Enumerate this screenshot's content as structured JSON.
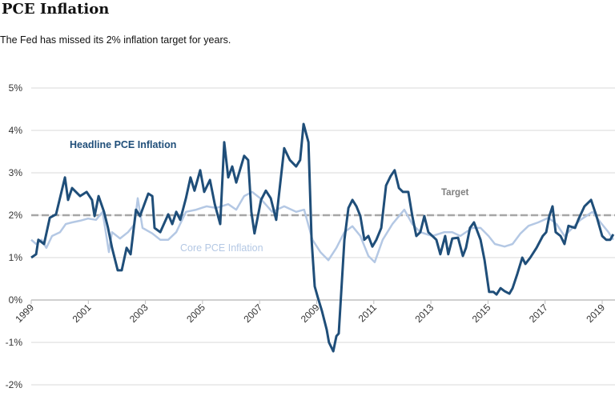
{
  "title": "PCE Inflation",
  "subtitle": "The Fed has missed its 2% inflation target for years.",
  "chart_data": {
    "type": "line",
    "title": "PCE Inflation",
    "xlabel": "",
    "ylabel": "",
    "xlim": [
      1999,
      2019.4
    ],
    "ylim": [
      -2,
      5
    ],
    "x_ticks": [
      "1999",
      "2001",
      "2003",
      "2005",
      "2007",
      "2009",
      "2011",
      "2013",
      "2015",
      "2017",
      "2019"
    ],
    "y_ticks": [
      "5%",
      "4%",
      "3%",
      "2%",
      "1%",
      "0%",
      "-1%",
      "-2%"
    ],
    "grid": true,
    "colors": {
      "headline": "#1f4e79",
      "core": "#b4c8e4",
      "target": "#a6a6a6"
    },
    "target": {
      "label": "Target",
      "value": 2
    },
    "series": [
      {
        "name": "Headline PCE Inflation",
        "points": [
          [
            1999.0,
            1.0
          ],
          [
            1999.17,
            1.08
          ],
          [
            1999.25,
            1.42
          ],
          [
            1999.45,
            1.32
          ],
          [
            1999.65,
            1.94
          ],
          [
            1999.87,
            2.02
          ],
          [
            2000.18,
            2.89
          ],
          [
            2000.29,
            2.36
          ],
          [
            2000.43,
            2.64
          ],
          [
            2000.71,
            2.45
          ],
          [
            2000.94,
            2.55
          ],
          [
            2001.13,
            2.36
          ],
          [
            2001.22,
            1.98
          ],
          [
            2001.36,
            2.45
          ],
          [
            2001.55,
            2.08
          ],
          [
            2001.69,
            1.7
          ],
          [
            2001.83,
            1.23
          ],
          [
            2002.03,
            0.7
          ],
          [
            2002.17,
            0.7
          ],
          [
            2002.34,
            1.23
          ],
          [
            2002.48,
            1.08
          ],
          [
            2002.67,
            2.13
          ],
          [
            2002.81,
            1.98
          ],
          [
            2003.1,
            2.51
          ],
          [
            2003.24,
            2.45
          ],
          [
            2003.32,
            1.7
          ],
          [
            2003.52,
            1.6
          ],
          [
            2003.8,
            2.02
          ],
          [
            2003.94,
            1.79
          ],
          [
            2004.08,
            2.08
          ],
          [
            2004.22,
            1.89
          ],
          [
            2004.42,
            2.4
          ],
          [
            2004.58,
            2.89
          ],
          [
            2004.72,
            2.58
          ],
          [
            2004.92,
            3.06
          ],
          [
            2005.06,
            2.55
          ],
          [
            2005.26,
            2.83
          ],
          [
            2005.43,
            2.26
          ],
          [
            2005.62,
            1.79
          ],
          [
            2005.76,
            3.72
          ],
          [
            2005.9,
            2.89
          ],
          [
            2006.04,
            3.15
          ],
          [
            2006.18,
            2.77
          ],
          [
            2006.46,
            3.4
          ],
          [
            2006.6,
            3.3
          ],
          [
            2006.71,
            2.08
          ],
          [
            2006.82,
            1.57
          ],
          [
            2006.94,
            1.98
          ],
          [
            2007.05,
            2.36
          ],
          [
            2007.22,
            2.58
          ],
          [
            2007.39,
            2.4
          ],
          [
            2007.58,
            1.89
          ],
          [
            2007.72,
            2.74
          ],
          [
            2007.86,
            3.58
          ],
          [
            2008.06,
            3.3
          ],
          [
            2008.28,
            3.15
          ],
          [
            2008.42,
            3.3
          ],
          [
            2008.54,
            4.15
          ],
          [
            2008.71,
            3.72
          ],
          [
            2008.82,
            1.42
          ],
          [
            2008.93,
            0.32
          ],
          [
            2009.04,
            0.06
          ],
          [
            2009.18,
            -0.25
          ],
          [
            2009.35,
            -0.7
          ],
          [
            2009.43,
            -1.0
          ],
          [
            2009.58,
            -1.21
          ],
          [
            2009.69,
            -0.85
          ],
          [
            2009.77,
            -0.79
          ],
          [
            2009.97,
            1.42
          ],
          [
            2010.11,
            2.17
          ],
          [
            2010.25,
            2.36
          ],
          [
            2010.39,
            2.21
          ],
          [
            2010.53,
            1.98
          ],
          [
            2010.67,
            1.42
          ],
          [
            2010.81,
            1.51
          ],
          [
            2010.95,
            1.26
          ],
          [
            2011.09,
            1.42
          ],
          [
            2011.26,
            1.7
          ],
          [
            2011.43,
            2.7
          ],
          [
            2011.59,
            2.92
          ],
          [
            2011.73,
            3.06
          ],
          [
            2011.88,
            2.64
          ],
          [
            2012.02,
            2.55
          ],
          [
            2012.21,
            2.55
          ],
          [
            2012.35,
            1.98
          ],
          [
            2012.49,
            1.51
          ],
          [
            2012.63,
            1.6
          ],
          [
            2012.77,
            1.98
          ],
          [
            2012.91,
            1.6
          ],
          [
            2013.19,
            1.42
          ],
          [
            2013.33,
            1.08
          ],
          [
            2013.5,
            1.51
          ],
          [
            2013.61,
            1.08
          ],
          [
            2013.75,
            1.45
          ],
          [
            2013.95,
            1.47
          ],
          [
            2014.12,
            1.04
          ],
          [
            2014.23,
            1.23
          ],
          [
            2014.37,
            1.7
          ],
          [
            2014.51,
            1.83
          ],
          [
            2014.74,
            1.42
          ],
          [
            2014.88,
            0.94
          ],
          [
            2015.04,
            0.19
          ],
          [
            2015.19,
            0.19
          ],
          [
            2015.3,
            0.13
          ],
          [
            2015.44,
            0.28
          ],
          [
            2015.58,
            0.21
          ],
          [
            2015.75,
            0.15
          ],
          [
            2015.86,
            0.28
          ],
          [
            2016.03,
            0.62
          ],
          [
            2016.2,
            1.0
          ],
          [
            2016.31,
            0.85
          ],
          [
            2016.48,
            1.0
          ],
          [
            2016.7,
            1.23
          ],
          [
            2016.92,
            1.51
          ],
          [
            2017.04,
            1.6
          ],
          [
            2017.15,
            1.98
          ],
          [
            2017.26,
            2.21
          ],
          [
            2017.37,
            1.6
          ],
          [
            2017.54,
            1.51
          ],
          [
            2017.68,
            1.32
          ],
          [
            2017.82,
            1.75
          ],
          [
            2018.05,
            1.7
          ],
          [
            2018.16,
            1.89
          ],
          [
            2018.38,
            2.21
          ],
          [
            2018.61,
            2.36
          ],
          [
            2018.8,
            1.98
          ],
          [
            2019.0,
            1.51
          ],
          [
            2019.14,
            1.42
          ],
          [
            2019.28,
            1.42
          ],
          [
            2019.39,
            1.55
          ]
        ]
      },
      {
        "name": "Core PCE Inflation",
        "points": [
          [
            1999.0,
            1.42
          ],
          [
            1999.17,
            1.32
          ],
          [
            1999.36,
            1.42
          ],
          [
            1999.53,
            1.23
          ],
          [
            1999.73,
            1.51
          ],
          [
            2000.01,
            1.6
          ],
          [
            2000.21,
            1.79
          ],
          [
            2000.43,
            1.83
          ],
          [
            2000.71,
            1.87
          ],
          [
            2000.99,
            1.92
          ],
          [
            2001.27,
            1.89
          ],
          [
            2001.5,
            2.08
          ],
          [
            2001.72,
            1.13
          ],
          [
            2001.83,
            1.6
          ],
          [
            2002.11,
            1.45
          ],
          [
            2002.39,
            1.6
          ],
          [
            2002.62,
            1.79
          ],
          [
            2002.73,
            2.4
          ],
          [
            2002.9,
            1.7
          ],
          [
            2003.24,
            1.57
          ],
          [
            2003.52,
            1.42
          ],
          [
            2003.8,
            1.42
          ],
          [
            2004.08,
            1.6
          ],
          [
            2004.42,
            2.08
          ],
          [
            2004.78,
            2.13
          ],
          [
            2005.14,
            2.21
          ],
          [
            2005.48,
            2.17
          ],
          [
            2005.9,
            2.26
          ],
          [
            2006.18,
            2.13
          ],
          [
            2006.46,
            2.45
          ],
          [
            2006.74,
            2.55
          ],
          [
            2007.02,
            2.4
          ],
          [
            2007.44,
            2.08
          ],
          [
            2007.86,
            2.21
          ],
          [
            2008.28,
            2.08
          ],
          [
            2008.56,
            2.13
          ],
          [
            2008.85,
            1.42
          ],
          [
            2009.13,
            1.13
          ],
          [
            2009.41,
            0.94
          ],
          [
            2009.69,
            1.23
          ],
          [
            2009.97,
            1.6
          ],
          [
            2010.25,
            1.74
          ],
          [
            2010.53,
            1.51
          ],
          [
            2010.81,
            1.04
          ],
          [
            2011.03,
            0.89
          ],
          [
            2011.31,
            1.42
          ],
          [
            2011.65,
            1.79
          ],
          [
            2012.07,
            2.13
          ],
          [
            2012.35,
            1.79
          ],
          [
            2012.63,
            1.6
          ],
          [
            2013.05,
            1.51
          ],
          [
            2013.47,
            1.6
          ],
          [
            2013.75,
            1.6
          ],
          [
            2014.03,
            1.51
          ],
          [
            2014.45,
            1.7
          ],
          [
            2014.74,
            1.7
          ],
          [
            2015.02,
            1.51
          ],
          [
            2015.24,
            1.32
          ],
          [
            2015.58,
            1.26
          ],
          [
            2015.86,
            1.32
          ],
          [
            2016.14,
            1.57
          ],
          [
            2016.42,
            1.75
          ],
          [
            2016.76,
            1.83
          ],
          [
            2017.12,
            1.94
          ],
          [
            2017.4,
            1.79
          ],
          [
            2017.68,
            1.51
          ],
          [
            2017.96,
            1.7
          ],
          [
            2018.24,
            1.89
          ],
          [
            2018.66,
            2.08
          ],
          [
            2018.94,
            1.83
          ],
          [
            2019.22,
            1.6
          ],
          [
            2019.39,
            1.42
          ]
        ]
      }
    ]
  }
}
